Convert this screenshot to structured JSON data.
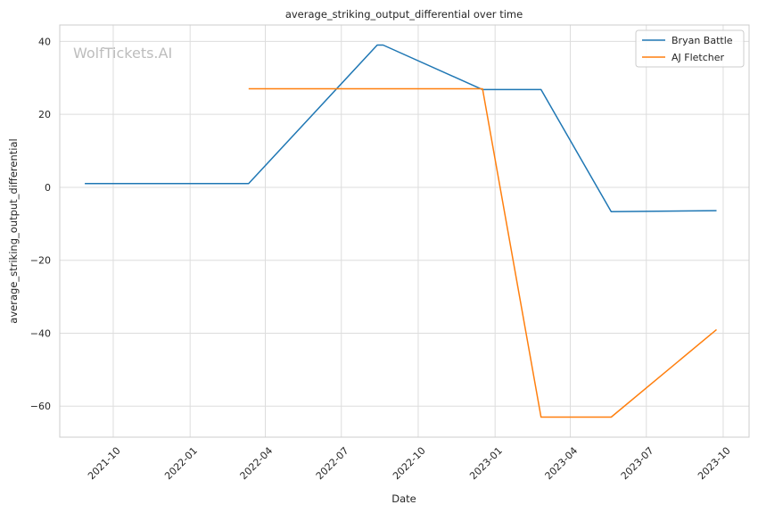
{
  "chart_data": {
    "type": "line",
    "title": "average_striking_output_differential over time",
    "xlabel": "Date",
    "ylabel": "average_striking_output_differential",
    "watermark": "WolfTickets.AI",
    "x_ticks": [
      "2021-10",
      "2022-01",
      "2022-04",
      "2022-07",
      "2022-10",
      "2023-01",
      "2023-04",
      "2023-07",
      "2023-10"
    ],
    "y_ticks": [
      40,
      20,
      0,
      -20,
      -40,
      -60
    ],
    "ylim": [
      -68.5,
      44.5
    ],
    "xlim": [
      "2021-07-29",
      "2023-11-01"
    ],
    "grid": true,
    "legend_position": "top-right",
    "colors": {
      "Bryan Battle": "#1f77b4",
      "AJ Fletcher": "#ff7f0e"
    },
    "series": [
      {
        "name": "Bryan Battle",
        "points": [
          {
            "date": "2021-08-28",
            "value": 1.0
          },
          {
            "date": "2022-03-12",
            "value": 1.0
          },
          {
            "date": "2022-08-13",
            "value": 39.0
          },
          {
            "date": "2022-08-20",
            "value": 39.0
          },
          {
            "date": "2022-12-17",
            "value": 26.8
          },
          {
            "date": "2023-02-25",
            "value": 26.8
          },
          {
            "date": "2023-05-20",
            "value": -6.7
          },
          {
            "date": "2023-09-23",
            "value": -6.4
          }
        ]
      },
      {
        "name": "AJ Fletcher",
        "points": [
          {
            "date": "2022-03-12",
            "value": 27.0
          },
          {
            "date": "2022-12-17",
            "value": 27.0
          },
          {
            "date": "2023-02-25",
            "value": -63.0
          },
          {
            "date": "2023-05-20",
            "value": -63.0
          },
          {
            "date": "2023-09-23",
            "value": -39.0
          }
        ]
      }
    ]
  }
}
